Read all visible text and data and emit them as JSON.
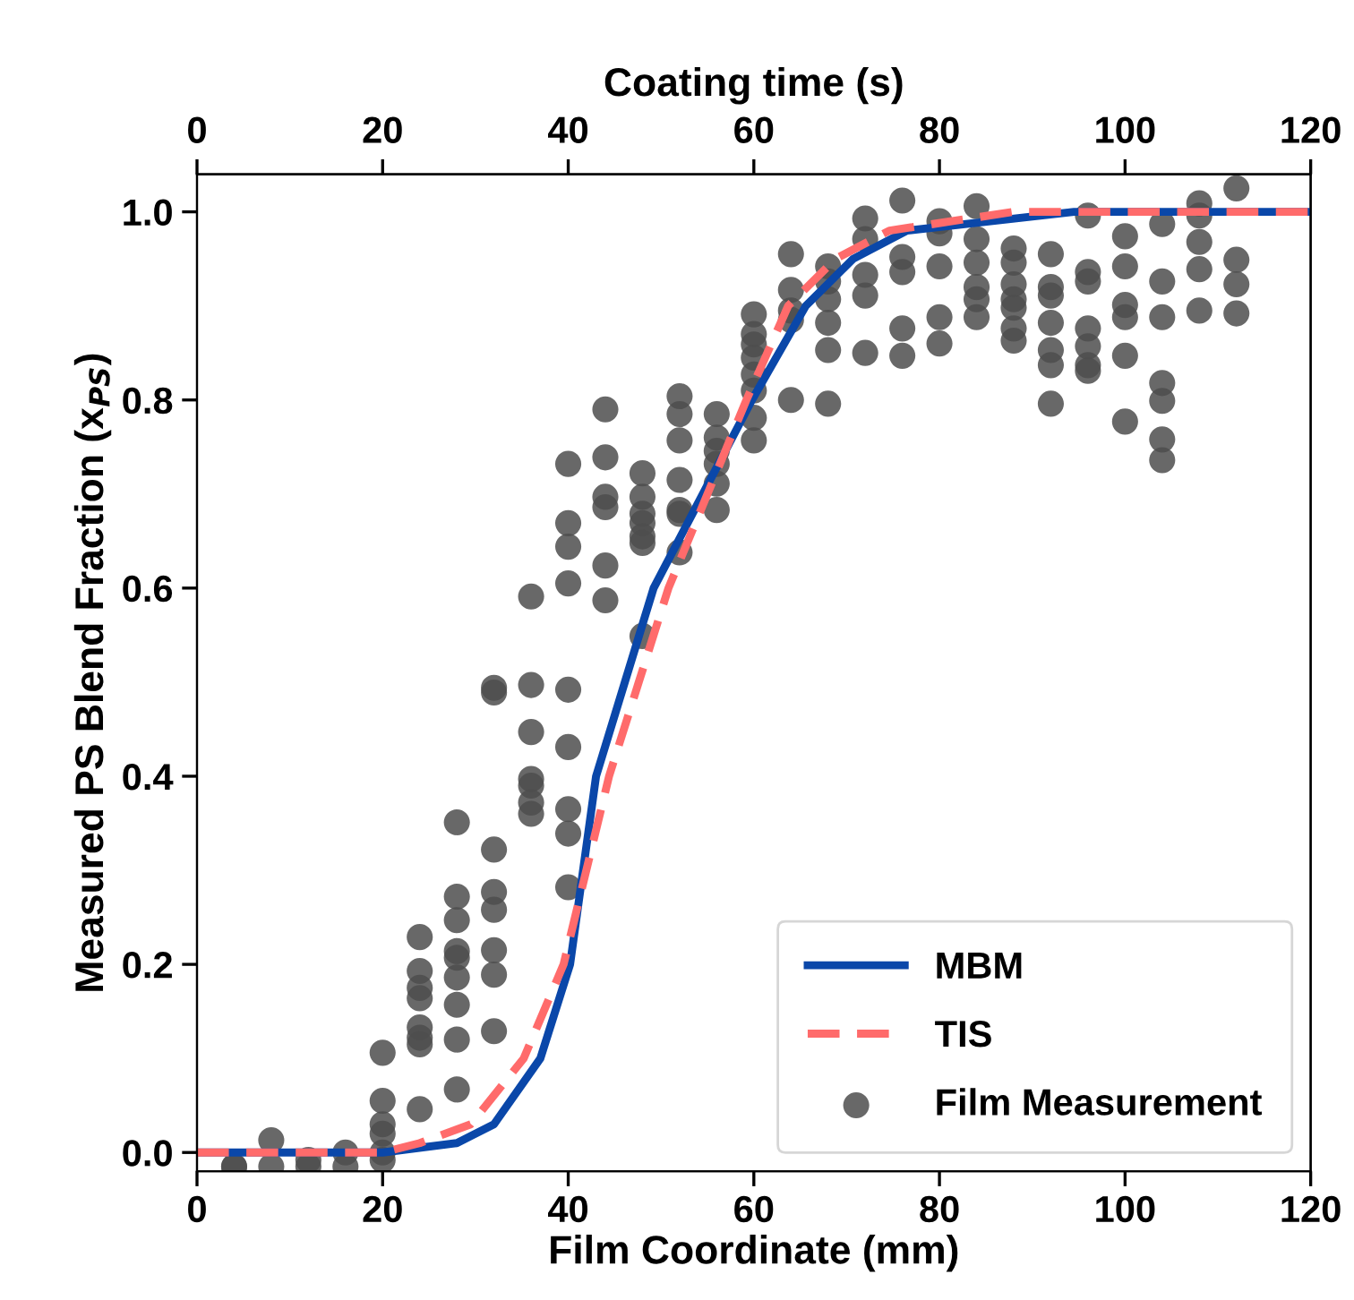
{
  "chart_data": {
    "type": "line",
    "xlabel": "Film Coordinate (mm)",
    "ylabel": "Measured PS Blend Fraction (x$_{PS}$)",
    "x2label": "Coating time (s)",
    "xlim": [
      0,
      120
    ],
    "xticks": [
      0,
      20,
      40,
      60,
      80,
      100,
      120
    ],
    "x2lim": [
      0,
      120
    ],
    "x2ticks": [
      0,
      20,
      40,
      60,
      80,
      100,
      120
    ],
    "ylim": [
      -0.02,
      1.04
    ],
    "yticks": [
      {
        "value": 0,
        "label": "0.0"
      },
      0.2,
      0.4,
      0.6,
      0.8,
      {
        "value": 1,
        "label": "1.0"
      }
    ],
    "grid": false,
    "legend": "bottom right",
    "series": [
      {
        "name": "MBM",
        "line_style": "solid",
        "color": "#0a47a9",
        "x": [
          0,
          20,
          28,
          32,
          37,
          40.2,
          43,
          49.2,
          59.8,
          65.6,
          70.7,
          76.5,
          94.5,
          120
        ],
        "values": [
          0.0,
          0.0,
          0.01,
          0.03,
          0.1,
          0.2,
          0.4,
          0.6,
          0.8,
          0.9,
          0.95,
          0.98,
          1.0,
          1.0
        ]
      },
      {
        "name": "TIS",
        "line_style": "dashed",
        "color": "#ff6b6b",
        "x": [
          0,
          20,
          24,
          29.5,
          35.2,
          39.5,
          44.4,
          50.8,
          59.2,
          63.7,
          68.8,
          74.6,
          88,
          120
        ],
        "values": [
          0.0,
          0.0,
          0.01,
          0.03,
          0.1,
          0.2,
          0.4,
          0.6,
          0.8,
          0.9,
          0.95,
          0.98,
          1.0,
          1.0
        ]
      },
      {
        "name": "Film Measurement",
        "type": "scatter",
        "marker": "circle",
        "color": "#4d4d4d",
        "x": [
          4,
          4,
          8,
          8,
          12,
          12,
          16,
          16,
          20,
          20,
          20,
          20,
          20,
          20,
          24,
          24,
          24,
          24,
          24,
          24,
          24,
          24,
          28,
          28,
          28,
          28,
          28,
          28,
          28,
          28,
          28,
          32,
          32,
          32,
          32,
          32,
          32,
          32,
          32,
          36,
          36,
          36,
          36,
          36,
          36,
          36,
          40,
          40,
          40,
          40,
          40,
          40,
          40,
          40,
          40,
          44,
          44,
          44,
          44,
          44,
          44,
          48,
          48,
          48,
          48,
          48,
          48,
          48,
          52,
          52,
          52,
          52,
          52,
          52,
          52,
          56,
          56,
          56,
          56,
          56,
          56,
          60,
          60,
          60,
          60,
          60,
          60,
          60,
          60,
          64,
          64,
          64,
          64,
          64,
          68,
          68,
          68,
          68,
          68,
          68,
          72,
          72,
          72,
          72,
          72,
          76,
          76,
          76,
          76,
          76,
          80,
          80,
          80,
          80,
          80,
          84,
          84,
          84,
          84,
          84,
          84,
          88,
          88,
          88,
          88,
          88,
          88,
          88,
          92,
          92,
          92,
          92,
          92,
          92,
          92,
          96,
          96,
          96,
          96,
          96,
          96,
          96,
          100,
          100,
          100,
          100,
          100,
          100,
          104,
          104,
          104,
          104,
          104,
          104,
          104,
          108,
          108,
          108,
          108,
          108,
          112,
          112,
          112,
          112
        ],
        "values": [
          -0.015,
          -0.015,
          0.013,
          -0.015,
          -0.015,
          -0.008,
          0.0,
          -0.015,
          0.106,
          0.055,
          0.03,
          0.02,
          0.0,
          -0.008,
          0.229,
          0.193,
          0.175,
          0.164,
          0.133,
          0.122,
          0.115,
          0.046,
          0.351,
          0.272,
          0.247,
          0.214,
          0.207,
          0.186,
          0.157,
          0.12,
          0.067,
          0.494,
          0.489,
          0.322,
          0.277,
          0.258,
          0.215,
          0.189,
          0.129,
          0.591,
          0.497,
          0.447,
          0.397,
          0.39,
          0.372,
          0.36,
          0.732,
          0.669,
          0.644,
          0.605,
          0.492,
          0.431,
          0.365,
          0.339,
          0.282,
          0.79,
          0.739,
          0.697,
          0.686,
          0.624,
          0.587,
          0.722,
          0.697,
          0.679,
          0.669,
          0.655,
          0.648,
          0.549,
          0.804,
          0.785,
          0.757,
          0.715,
          0.683,
          0.679,
          0.638,
          0.785,
          0.76,
          0.746,
          0.732,
          0.711,
          0.683,
          0.891,
          0.87,
          0.859,
          0.845,
          0.827,
          0.81,
          0.781,
          0.757,
          0.955,
          0.917,
          0.895,
          0.885,
          0.8,
          0.942,
          0.926,
          0.907,
          0.882,
          0.853,
          0.796,
          0.993,
          0.971,
          0.933,
          0.911,
          0.85,
          1.012,
          0.952,
          0.936,
          0.876,
          0.847,
          0.99,
          0.977,
          0.942,
          0.888,
          0.86,
          1.006,
          0.971,
          0.946,
          0.92,
          0.907,
          0.888,
          0.961,
          0.946,
          0.923,
          0.907,
          0.898,
          0.876,
          0.863,
          0.955,
          0.92,
          0.911,
          0.882,
          0.853,
          0.837,
          0.796,
          0.996,
          0.936,
          0.926,
          0.876,
          0.857,
          0.837,
          0.831,
          0.974,
          0.942,
          0.901,
          0.888,
          0.847,
          0.777,
          0.987,
          0.926,
          0.888,
          0.818,
          0.799,
          0.758,
          0.736,
          1.009,
          0.996,
          0.968,
          0.939,
          0.895,
          1.025,
          0.949,
          0.923,
          0.892
        ]
      }
    ]
  }
}
